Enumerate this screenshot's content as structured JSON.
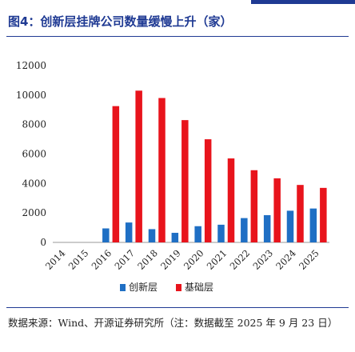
{
  "header": {
    "title": "图4：创新层挂牌公司数量缓慢上升（家）"
  },
  "footer": {
    "source": "数据来源：Wind、开源证券研究所（注：数据截至 2025 年 9 月 23 日）"
  },
  "colors": {
    "accent": "#1f3a93",
    "series_innovation": "#1f6fc4",
    "series_basic": "#e8141c"
  },
  "chart_data": {
    "type": "bar",
    "title": "",
    "xlabel": "",
    "ylabel": "",
    "categories": [
      "2014",
      "2015",
      "2016",
      "2017",
      "2018",
      "2019",
      "2020",
      "2021",
      "2022",
      "2023",
      "2024",
      "2025"
    ],
    "series": [
      {
        "name": "创新层",
        "values": [
          0,
          0,
          950,
          1350,
          900,
          650,
          1100,
          1200,
          1650,
          1850,
          2150,
          2300
        ]
      },
      {
        "name": "基础层",
        "values": [
          0,
          0,
          9250,
          10300,
          9800,
          8300,
          7000,
          5700,
          4900,
          4350,
          3900,
          3700
        ]
      }
    ],
    "ylim": [
      0,
      12000
    ],
    "yticks": [
      0,
      2000,
      4000,
      6000,
      8000,
      10000,
      12000
    ],
    "legend": "bottom",
    "grid": false
  }
}
